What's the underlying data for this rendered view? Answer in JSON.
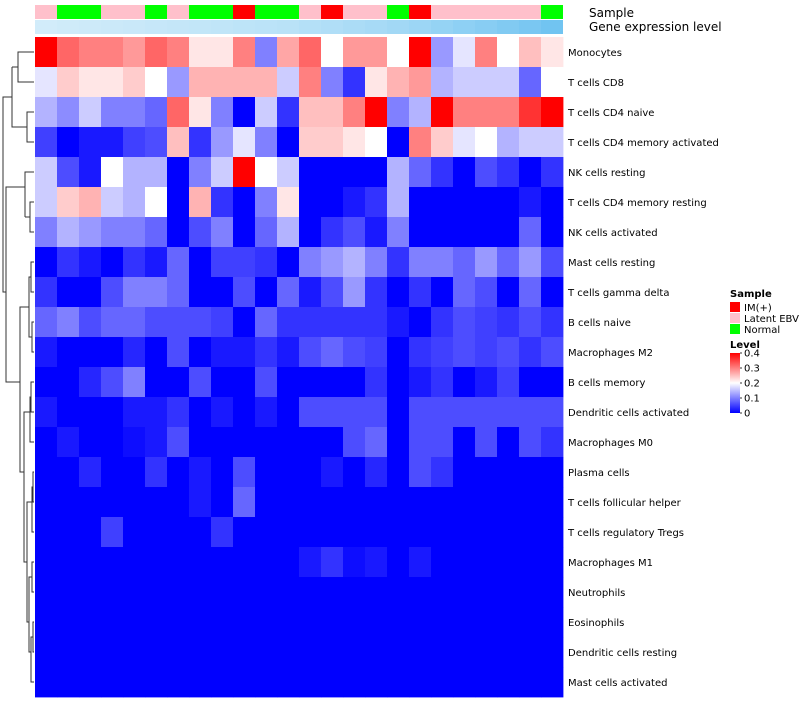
{
  "chart_data": {
    "type": "heatmap",
    "title": "",
    "annotation_tracks": [
      "Sample",
      "Gene expression level"
    ],
    "columns": 24,
    "sample_groups": [
      "Latent EBV",
      "Normal",
      "Normal",
      "Latent EBV",
      "Latent EBV",
      "Normal",
      "Latent EBV",
      "Normal",
      "Normal",
      "IM(+)",
      "Normal",
      "Normal",
      "Latent EBV",
      "IM(+)",
      "Latent EBV",
      "Latent EBV",
      "Normal",
      "IM(+)",
      "Latent EBV",
      "Latent EBV",
      "Latent EBV",
      "Latent EBV",
      "Latent EBV",
      "Normal"
    ],
    "gene_expression_level": [
      0.04,
      0.06,
      0.08,
      0.1,
      0.12,
      0.14,
      0.16,
      0.18,
      0.2,
      0.22,
      0.24,
      0.26,
      0.3,
      0.34,
      0.38,
      0.42,
      0.46,
      0.52,
      0.58,
      0.64,
      0.7,
      0.76,
      0.82,
      0.9
    ],
    "rows": [
      "Monocytes",
      "T cells CD8",
      "T cells CD4 naive",
      "T cells CD4 memory activated",
      "NK cells resting",
      "T cells CD4 memory resting",
      "NK cells activated",
      "Mast cells resting",
      "T cells gamma delta",
      "B cells naive",
      "Macrophages M2",
      "B cells memory",
      "Dendritic cells activated",
      "Macrophages M0",
      "Plasma cells",
      "T cells follicular helper",
      "T cells regulatory  Tregs",
      "Macrophages M1",
      "Neutrophils",
      "Eosinophils",
      "Dendritic cells resting",
      "Mast cells activated"
    ],
    "values": [
      [
        0.4,
        0.32,
        0.3,
        0.3,
        0.28,
        0.32,
        0.3,
        0.22,
        0.22,
        0.3,
        0.1,
        0.27,
        0.32,
        0.2,
        0.28,
        0.28,
        0.2,
        0.4,
        0.12,
        0.18,
        0.3,
        0.2,
        0.25,
        0.22
      ],
      [
        0.18,
        0.24,
        0.22,
        0.22,
        0.24,
        0.2,
        0.12,
        0.26,
        0.26,
        0.26,
        0.26,
        0.16,
        0.3,
        0.1,
        0.04,
        0.22,
        0.26,
        0.28,
        0.14,
        0.16,
        0.16,
        0.16,
        0.08,
        0.2
      ],
      [
        0.14,
        0.11,
        0.16,
        0.1,
        0.1,
        0.08,
        0.32,
        0.22,
        0.1,
        0.0,
        0.16,
        0.04,
        0.25,
        0.25,
        0.3,
        0.4,
        0.1,
        0.14,
        0.4,
        0.3,
        0.3,
        0.3,
        0.36,
        0.4
      ],
      [
        0.05,
        0.0,
        0.02,
        0.02,
        0.05,
        0.06,
        0.25,
        0.04,
        0.12,
        0.18,
        0.1,
        0.0,
        0.24,
        0.24,
        0.22,
        0.2,
        0.0,
        0.3,
        0.24,
        0.18,
        0.2,
        0.14,
        0.16,
        0.16
      ],
      [
        0.16,
        0.06,
        0.02,
        0.2,
        0.14,
        0.14,
        0.0,
        0.1,
        0.16,
        0.4,
        0.2,
        0.16,
        0.0,
        0.0,
        0.0,
        0.0,
        0.14,
        0.08,
        0.04,
        0.0,
        0.06,
        0.04,
        0.0,
        0.04
      ],
      [
        0.16,
        0.24,
        0.26,
        0.16,
        0.14,
        0.2,
        0.0,
        0.26,
        0.04,
        0.0,
        0.1,
        0.22,
        0.0,
        0.0,
        0.02,
        0.04,
        0.14,
        0.0,
        0.0,
        0.0,
        0.0,
        0.0,
        0.02,
        0.0
      ],
      [
        0.1,
        0.14,
        0.12,
        0.1,
        0.1,
        0.08,
        0.0,
        0.06,
        0.1,
        0.0,
        0.08,
        0.14,
        0.0,
        0.04,
        0.06,
        0.02,
        0.1,
        0.0,
        0.0,
        0.0,
        0.0,
        0.0,
        0.08,
        0.0
      ],
      [
        0.0,
        0.04,
        0.02,
        0.0,
        0.04,
        0.02,
        0.08,
        0.0,
        0.05,
        0.05,
        0.04,
        0.0,
        0.1,
        0.12,
        0.14,
        0.1,
        0.04,
        0.1,
        0.1,
        0.08,
        0.12,
        0.08,
        0.12,
        0.06
      ],
      [
        0.04,
        0.0,
        0.0,
        0.06,
        0.1,
        0.1,
        0.08,
        0.0,
        0.0,
        0.06,
        0.0,
        0.08,
        0.02,
        0.06,
        0.12,
        0.04,
        0.0,
        0.04,
        0.0,
        0.08,
        0.06,
        0.0,
        0.08,
        0.0
      ],
      [
        0.08,
        0.1,
        0.06,
        0.08,
        0.08,
        0.06,
        0.06,
        0.06,
        0.05,
        0.0,
        0.08,
        0.04,
        0.04,
        0.04,
        0.04,
        0.04,
        0.02,
        0.0,
        0.04,
        0.06,
        0.05,
        0.04,
        0.06,
        0.04
      ],
      [
        0.02,
        0.0,
        0.0,
        0.0,
        0.03,
        0.0,
        0.06,
        0.0,
        0.02,
        0.02,
        0.04,
        0.02,
        0.06,
        0.08,
        0.06,
        0.05,
        0.0,
        0.04,
        0.05,
        0.06,
        0.05,
        0.06,
        0.04,
        0.06
      ],
      [
        0.0,
        0.0,
        0.03,
        0.06,
        0.1,
        0.0,
        0.0,
        0.06,
        0.0,
        0.0,
        0.06,
        0.0,
        0.0,
        0.0,
        0.0,
        0.04,
        0.0,
        0.02,
        0.04,
        0.0,
        0.02,
        0.05,
        0.0,
        0.0
      ],
      [
        0.02,
        0.0,
        0.0,
        0.0,
        0.02,
        0.02,
        0.04,
        0.0,
        0.02,
        0.0,
        0.02,
        0.0,
        0.06,
        0.06,
        0.06,
        0.06,
        0.0,
        0.06,
        0.06,
        0.06,
        0.06,
        0.06,
        0.06,
        0.06
      ],
      [
        0.0,
        0.02,
        0.0,
        0.0,
        0.01,
        0.02,
        0.06,
        0.0,
        0.0,
        0.0,
        0.0,
        0.0,
        0.0,
        0.0,
        0.06,
        0.08,
        0.0,
        0.06,
        0.06,
        0.0,
        0.06,
        0.0,
        0.06,
        0.04
      ],
      [
        0.0,
        0.0,
        0.03,
        0.0,
        0.0,
        0.04,
        0.0,
        0.02,
        0.0,
        0.06,
        0.0,
        0.0,
        0.0,
        0.02,
        0.0,
        0.03,
        0.0,
        0.06,
        0.04,
        0.0,
        0.0,
        0.0,
        0.0,
        0.0
      ],
      [
        0.0,
        0.0,
        0.0,
        0.0,
        0.0,
        0.0,
        0.0,
        0.02,
        0.0,
        0.08,
        0.0,
        0.0,
        0.0,
        0.0,
        0.0,
        0.0,
        0.0,
        0.0,
        0.0,
        0.0,
        0.0,
        0.0,
        0.0,
        0.0
      ],
      [
        0.0,
        0.0,
        0.0,
        0.05,
        0.0,
        0.0,
        0.0,
        0.0,
        0.04,
        0.0,
        0.0,
        0.0,
        0.0,
        0.0,
        0.0,
        0.0,
        0.0,
        0.0,
        0.0,
        0.0,
        0.0,
        0.0,
        0.0,
        0.0
      ],
      [
        0.0,
        0.0,
        0.0,
        0.0,
        0.0,
        0.0,
        0.0,
        0.0,
        0.0,
        0.0,
        0.0,
        0.0,
        0.02,
        0.04,
        0.01,
        0.02,
        0.0,
        0.02,
        0.0,
        0.0,
        0.0,
        0.0,
        0.0,
        0.0
      ],
      [
        0.0,
        0.0,
        0.0,
        0.0,
        0.0,
        0.0,
        0.0,
        0.0,
        0.0,
        0.0,
        0.0,
        0.0,
        0.0,
        0.0,
        0.0,
        0.0,
        0.0,
        0.0,
        0.0,
        0.0,
        0.0,
        0.0,
        0.0,
        0.0
      ],
      [
        0.0,
        0.0,
        0.0,
        0.0,
        0.0,
        0.0,
        0.0,
        0.0,
        0.0,
        0.0,
        0.0,
        0.0,
        0.0,
        0.0,
        0.0,
        0.0,
        0.0,
        0.0,
        0.0,
        0.0,
        0.0,
        0.0,
        0.0,
        0.0
      ],
      [
        0.0,
        0.0,
        0.0,
        0.0,
        0.0,
        0.0,
        0.0,
        0.0,
        0.0,
        0.0,
        0.0,
        0.0,
        0.0,
        0.0,
        0.0,
        0.0,
        0.0,
        0.0,
        0.0,
        0.0,
        0.0,
        0.0,
        0.0,
        0.0
      ],
      [
        0.0,
        0.0,
        0.0,
        0.0,
        0.0,
        0.0,
        0.0,
        0.0,
        0.0,
        0.0,
        0.0,
        0.0,
        0.0,
        0.0,
        0.0,
        0.0,
        0.0,
        0.0,
        0.0,
        0.0,
        0.0,
        0.0,
        0.0,
        0.0
      ]
    ],
    "legend": {
      "sample_title": "Sample",
      "sample_items": [
        {
          "label": "IM(+)",
          "color": "#ff0000"
        },
        {
          "label": "Latent EBV",
          "color": "#ffc0cb"
        },
        {
          "label": "Normal",
          "color": "#00ff00"
        }
      ],
      "level_title": "Level",
      "level_ticks": [
        "0.4",
        "0.3",
        "0.2",
        "0.1",
        "0"
      ],
      "level_tick_values": [
        0.4,
        0.3,
        0.2,
        0.1,
        0.0
      ],
      "range": [
        0,
        0.4
      ]
    },
    "colors": {
      "low": "#0000ff",
      "mid": "#ffffff",
      "high": "#ff0000",
      "expr_low": "#d6eefa",
      "expr_high": "#66bff0"
    }
  }
}
